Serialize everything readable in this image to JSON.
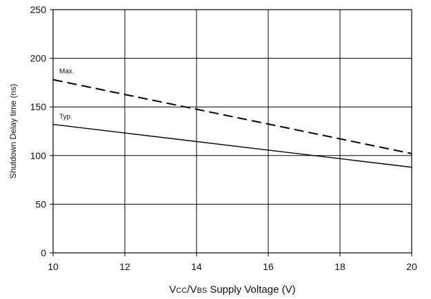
{
  "chart_data": {
    "type": "line",
    "title": "",
    "xlabel": "VCC/VBS Supply Voltage (V)",
    "xlabel_parts": [
      {
        "text": "V",
        "style": "normal"
      },
      {
        "text": "CC",
        "style": "small"
      },
      {
        "text": "/V",
        "style": "normal"
      },
      {
        "text": "BS",
        "style": "small"
      },
      {
        "text": " Supply Voltage (V)",
        "style": "normal"
      }
    ],
    "ylabel": "Shutdown Delay time (ns)",
    "xlim": [
      10,
      20
    ],
    "ylim": [
      0,
      250
    ],
    "xticks": [
      10,
      12,
      14,
      16,
      18,
      20
    ],
    "yticks": [
      0,
      50,
      100,
      150,
      200,
      250
    ],
    "grid": true,
    "series": [
      {
        "name": "Max.",
        "style": "dashed",
        "color": "#000000",
        "x": [
          10,
          20
        ],
        "y": [
          178,
          102
        ]
      },
      {
        "name": "Typ.",
        "style": "solid",
        "color": "#000000",
        "x": [
          10,
          20
        ],
        "y": [
          132,
          88
        ]
      }
    ]
  }
}
